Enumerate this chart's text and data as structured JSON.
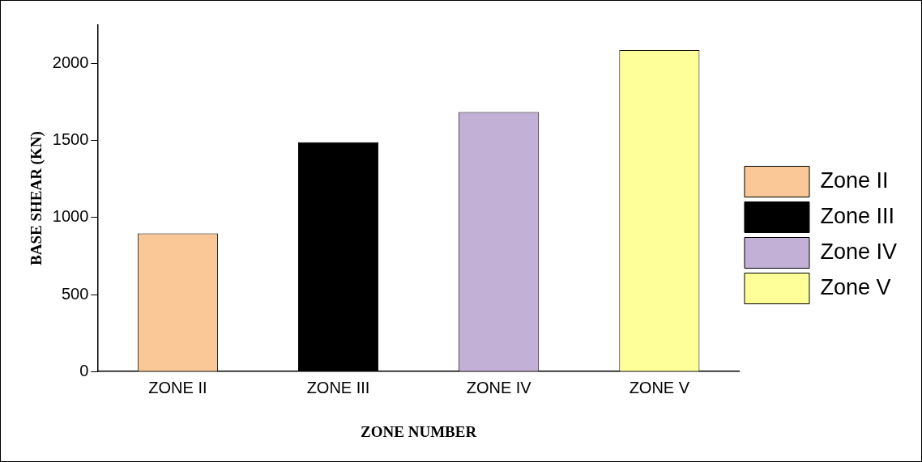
{
  "chart_data": {
    "type": "bar",
    "stacked": true,
    "xlabel": "ZONE NUMBER",
    "ylabel": "BASE SHEAR (KN)",
    "categories": [
      "ZONE II",
      "ZONE III",
      "ZONE IV",
      "ZONE V"
    ],
    "series": [
      {
        "name": "Zone II",
        "color": "#f9c896",
        "values": [
          897,
          null,
          null,
          null
        ]
      },
      {
        "name": "Zone III",
        "color": "#000000",
        "values": [
          null,
          1489,
          null,
          null
        ]
      },
      {
        "name": "Zone IV",
        "color": "#c3b0d6",
        "values": [
          null,
          null,
          1685,
          null
        ]
      },
      {
        "name": "Zone V",
        "color": "#ffff99",
        "values": [
          null,
          null,
          null,
          2087
        ]
      }
    ],
    "ylim": [
      0,
      2250
    ],
    "yticks": [
      0,
      500,
      1000,
      1500,
      2000
    ],
    "grid": false,
    "legend": "right"
  }
}
